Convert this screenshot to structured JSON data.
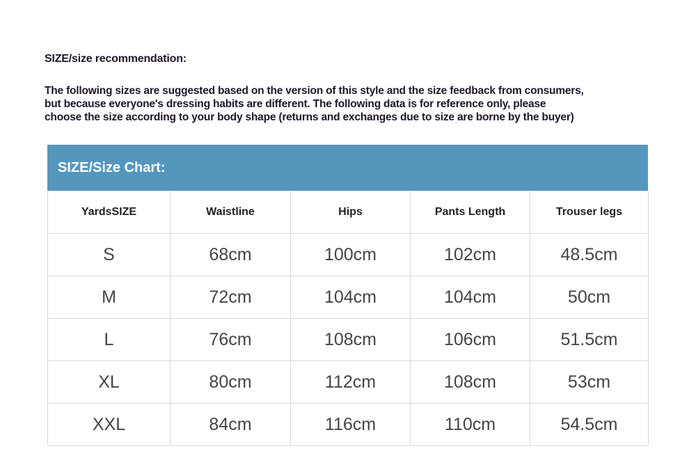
{
  "recommendation": {
    "title": "SIZE/size recommendation:",
    "lines": [
      "The following sizes are suggested based on the version of this style and the size feedback from consumers,",
      "but because everyone's dressing habits are different. The following data is for reference only, please",
      "choose the size according to your body shape (returns and exchanges due to size are borne by the buyer)"
    ]
  },
  "chart": {
    "title": "SIZE/Size Chart:",
    "header_color": "#5596bd",
    "columns": [
      "YardsSIZE",
      "Waistline",
      "Hips",
      "Pants Length",
      "Trouser legs"
    ],
    "rows": [
      [
        "S",
        "68cm",
        "100cm",
        "102cm",
        "48.5cm"
      ],
      [
        "M",
        "72cm",
        "104cm",
        "104cm",
        "50cm"
      ],
      [
        "L",
        "76cm",
        "108cm",
        "106cm",
        "51.5cm"
      ],
      [
        "XL",
        "80cm",
        "112cm",
        "108cm",
        "53cm"
      ],
      [
        "XXL",
        "84cm",
        "116cm",
        "110cm",
        "54.5cm"
      ]
    ]
  }
}
